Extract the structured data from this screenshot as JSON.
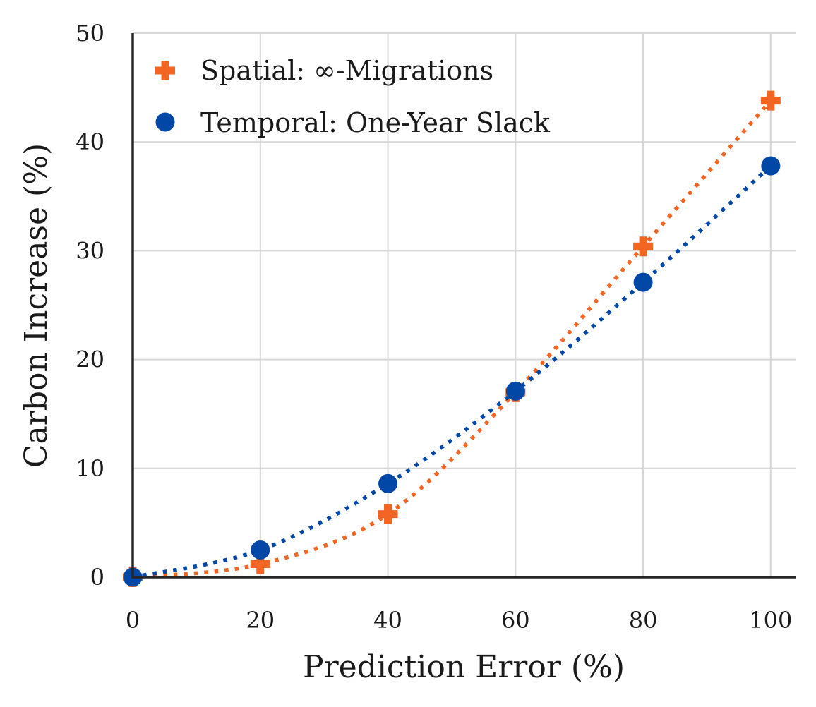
{
  "chart_data": {
    "type": "line",
    "title": "",
    "xlabel": "Prediction Error (%)",
    "ylabel": "Carbon Increase (%)",
    "xlim": [
      0,
      104
    ],
    "ylim": [
      0,
      50
    ],
    "x_ticks": [
      0,
      20,
      40,
      60,
      80,
      100
    ],
    "y_ticks": [
      0,
      10,
      20,
      30,
      40,
      50
    ],
    "grid": true,
    "legend_position": "top-left",
    "x": [
      0,
      20,
      40,
      60,
      80,
      100
    ],
    "series": [
      {
        "name": "Spatial: ∞-Migrations",
        "values": [
          0,
          1.2,
          5.8,
          17.0,
          30.4,
          43.8
        ],
        "color": "#f26522",
        "marker": "plus",
        "line_style": "dotted"
      },
      {
        "name": "Temporal: One-Year Slack",
        "values": [
          0,
          2.5,
          8.6,
          17.1,
          27.1,
          37.8
        ],
        "color": "#0047a6",
        "marker": "circle",
        "line_style": "dotted"
      }
    ]
  }
}
